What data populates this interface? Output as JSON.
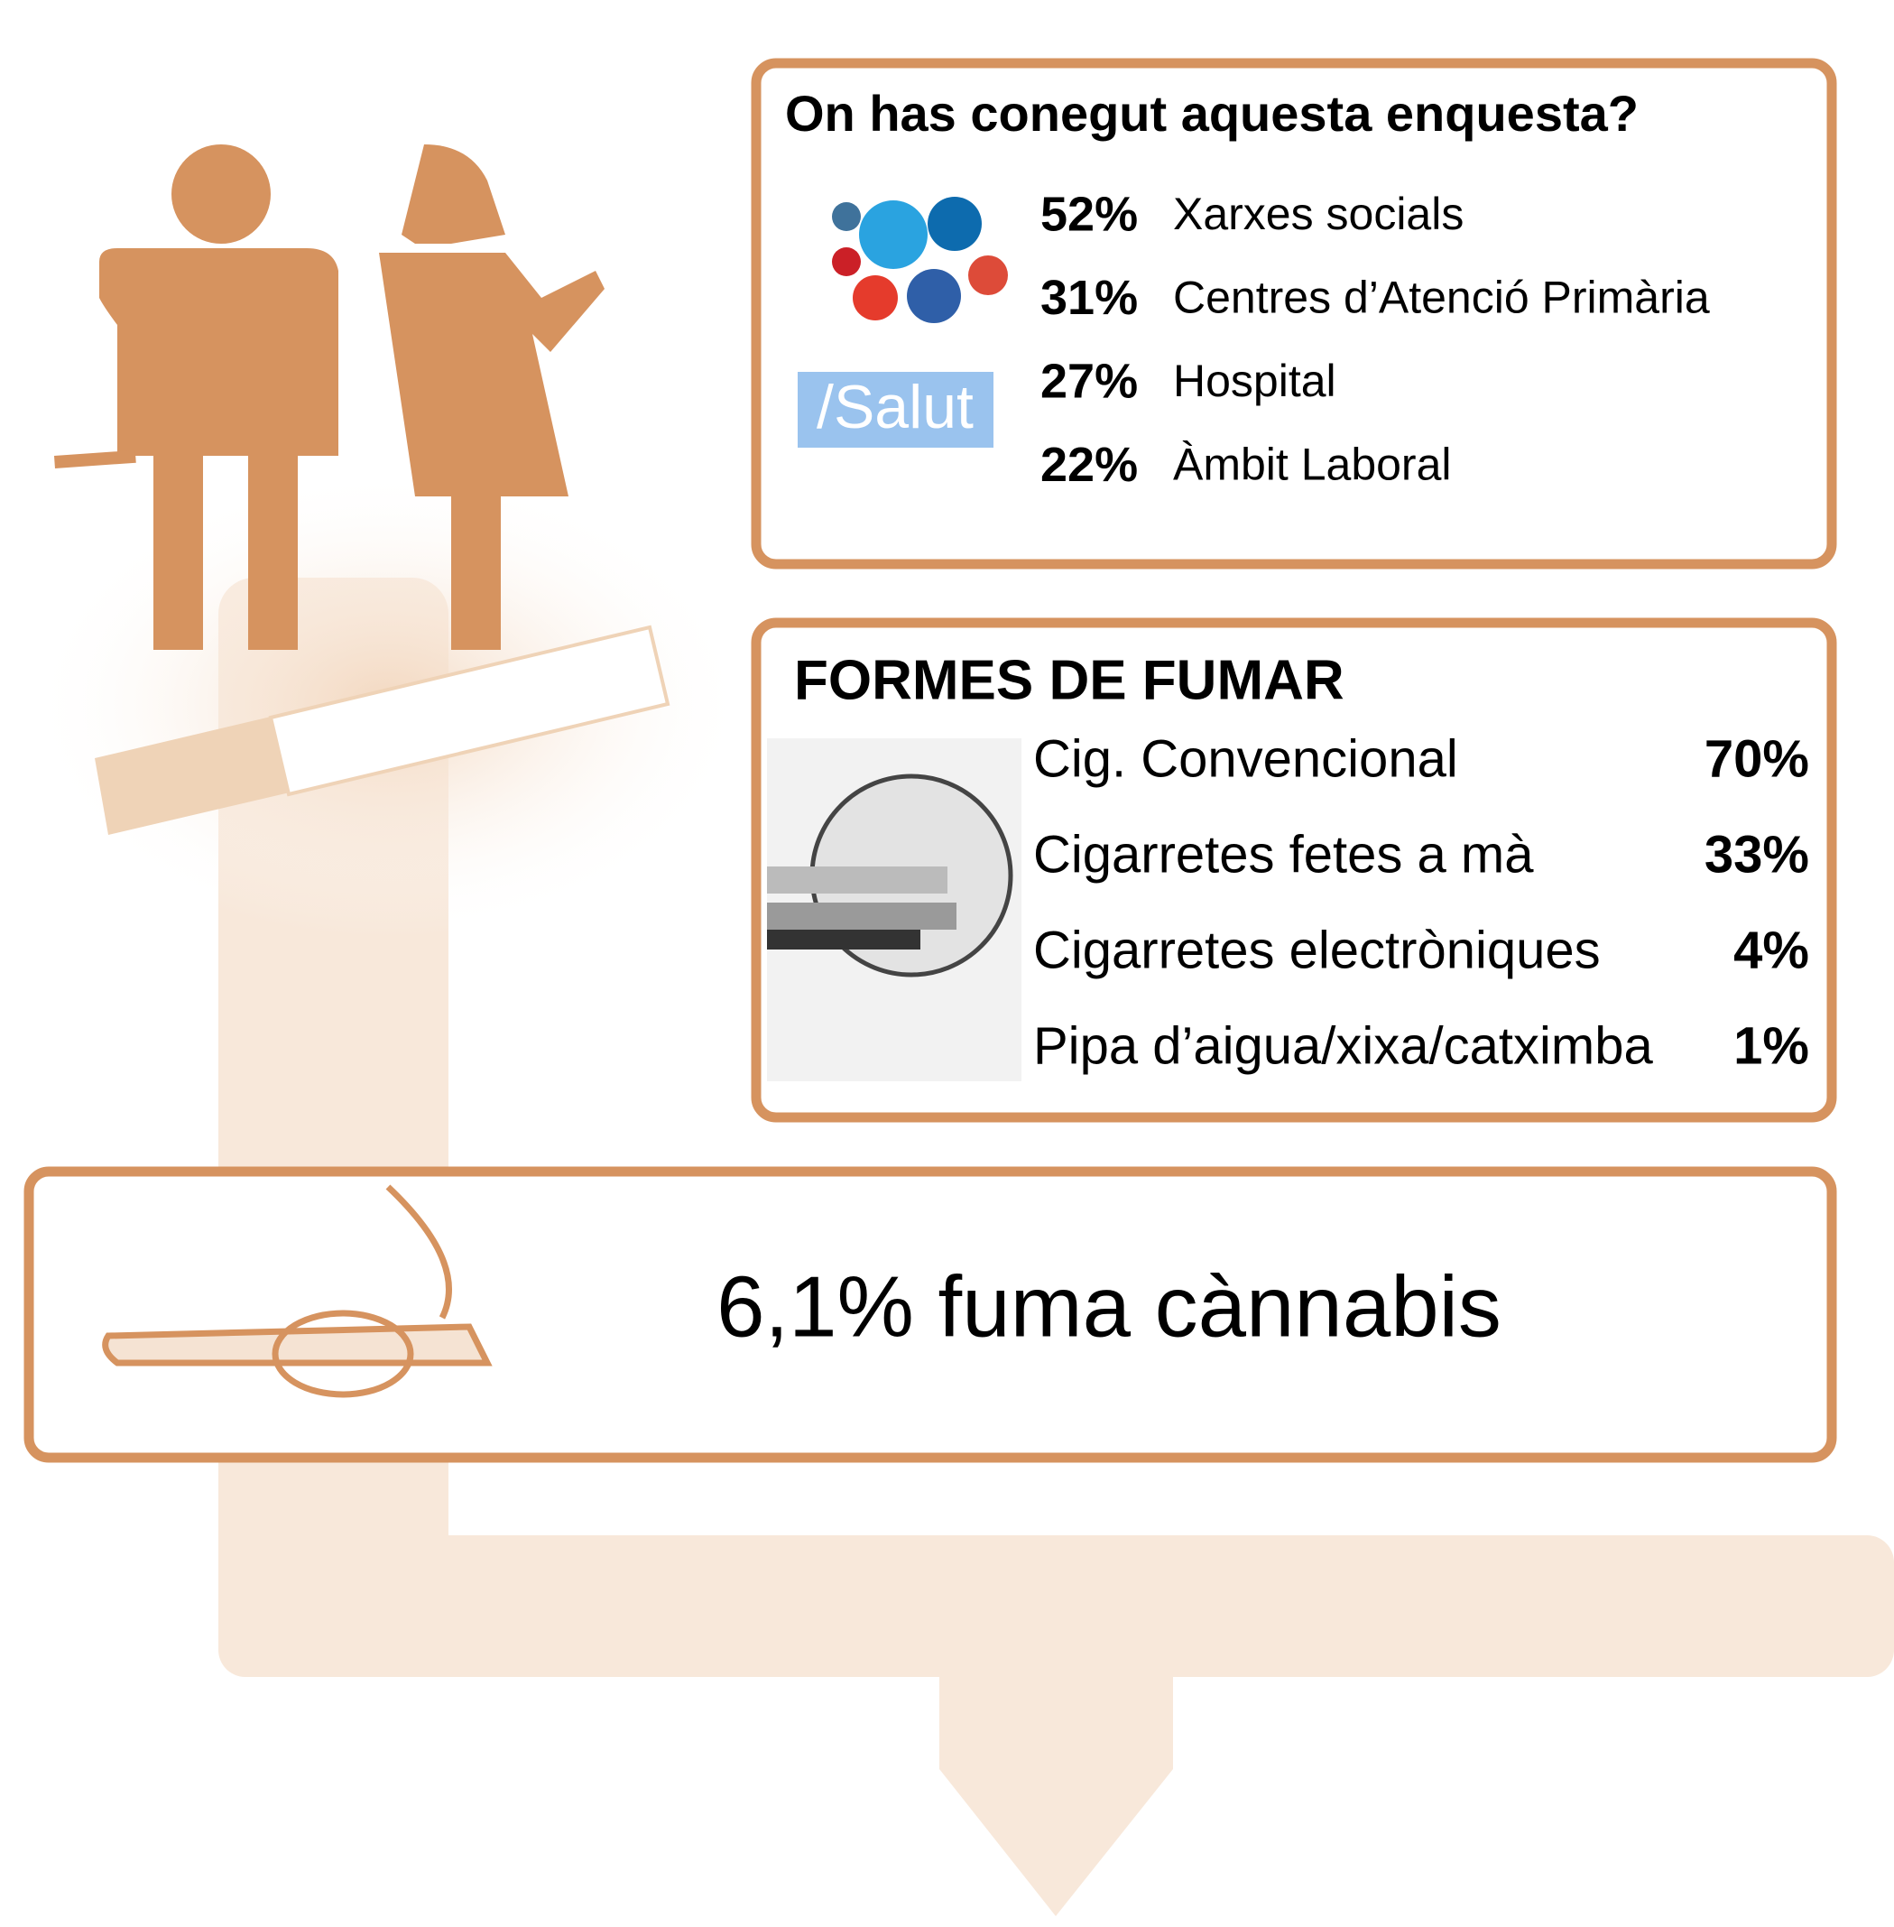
{
  "survey": {
    "title": "On has conegut aquesta enquesta?",
    "logo": "/Salut",
    "items": [
      {
        "percent": "52%",
        "label": "Xarxes socials"
      },
      {
        "percent": "31%",
        "label": "Centres d’Atenció Primària"
      },
      {
        "percent": "27%",
        "label": "Hospital"
      },
      {
        "percent": "22%",
        "label": "Àmbit Laboral"
      }
    ]
  },
  "smoking": {
    "title": "FORMES DE FUMAR",
    "items": [
      {
        "label": "Cig. Convencional",
        "percent": "70%"
      },
      {
        "label": "Cigarretes fetes a mà",
        "percent": "33%"
      },
      {
        "label": "Cigarretes electròniques",
        "percent": "4%"
      },
      {
        "label": "Pipa d’aigua/xixa/catximba",
        "percent": "1%"
      }
    ]
  },
  "cannabis": "6,1% fuma cànnabis"
}
